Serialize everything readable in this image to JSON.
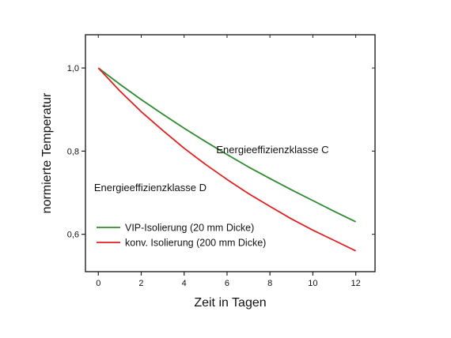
{
  "chart_data": {
    "type": "line",
    "title": "",
    "xlabel": "Zeit in Tagen",
    "ylabel": "normierte Temperatur",
    "xlim": [
      -0.6,
      12.9
    ],
    "ylim": [
      0.51,
      1.08
    ],
    "x_ticks": [
      0,
      2,
      4,
      6,
      8,
      10,
      12
    ],
    "x_tick_labels": [
      "0",
      "2",
      "4",
      "6",
      "8",
      "10",
      "12"
    ],
    "y_ticks": [
      0.6,
      0.8,
      1.0
    ],
    "y_tick_labels": [
      "0,6",
      "0,8",
      "1,0"
    ],
    "grid": false,
    "legend_position": "bottom-left",
    "series": [
      {
        "name": "VIP-Isolierung (20 mm Dicke)",
        "color": "#2e8b2e",
        "x": [
          0,
          1,
          2,
          3,
          4,
          5,
          6,
          7,
          8,
          9,
          10,
          11,
          12
        ],
        "y": [
          1.0,
          0.961,
          0.924,
          0.889,
          0.855,
          0.823,
          0.792,
          0.762,
          0.734,
          0.707,
          0.681,
          0.655,
          0.63
        ]
      },
      {
        "name": "konv. Isolierung (200 mm Dicke)",
        "color": "#e02020",
        "x": [
          0,
          1,
          2,
          3,
          4,
          5,
          6,
          7,
          8,
          9,
          10,
          11,
          12
        ],
        "y": [
          1.0,
          0.945,
          0.895,
          0.85,
          0.807,
          0.768,
          0.732,
          0.698,
          0.667,
          0.637,
          0.61,
          0.585,
          0.56
        ]
      }
    ],
    "annotations": [
      {
        "text": "Energieeffizienzklasse C",
        "x": 5.5,
        "y": 0.795
      },
      {
        "text": "Energieeffizienzklasse D",
        "x": -0.2,
        "y": 0.704
      }
    ]
  }
}
